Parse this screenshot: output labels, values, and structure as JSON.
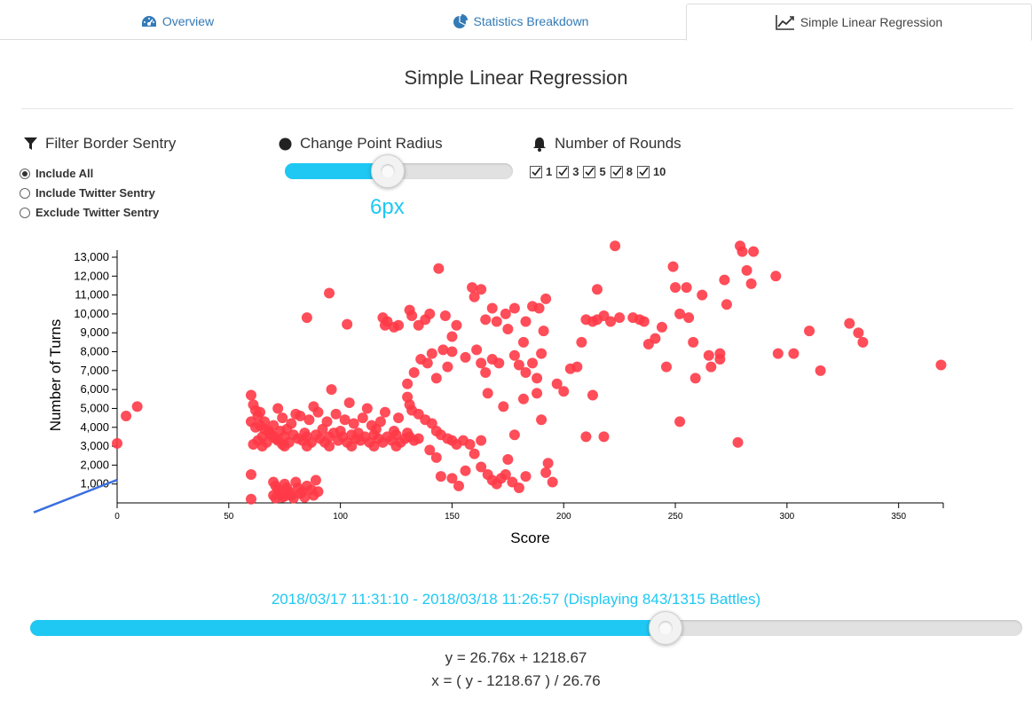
{
  "tabs": [
    {
      "label": "Overview",
      "icon": "dashboard-icon",
      "active": false
    },
    {
      "label": "Statistics Breakdown",
      "icon": "pie-chart-icon",
      "active": false
    },
    {
      "label": "Simple Linear Regression",
      "icon": "line-chart-icon",
      "active": true
    }
  ],
  "page_title": "Simple Linear Regression",
  "filter": {
    "heading": "Filter Border Sentry",
    "icon": "filter-icon",
    "options": [
      "Include All",
      "Include Twitter Sentry",
      "Exclude Twitter Sentry"
    ],
    "selected": 0
  },
  "point_radius": {
    "heading": "Change Point Radius",
    "icon": "circle-icon",
    "value_label": "6px",
    "value": 6,
    "fraction": 0.45
  },
  "rounds": {
    "heading": "Number of Rounds",
    "icon": "bell-icon",
    "options": [
      {
        "label": "1",
        "checked": true
      },
      {
        "label": "3",
        "checked": true
      },
      {
        "label": "5",
        "checked": true
      },
      {
        "label": "8",
        "checked": true
      },
      {
        "label": "10",
        "checked": true
      }
    ]
  },
  "chart_data": {
    "type": "scatter",
    "xlabel": "Score",
    "ylabel": "Number of Turns",
    "xlim": [
      0,
      370
    ],
    "ylim": [
      0,
      13000
    ],
    "x_ticks": [
      0,
      50,
      100,
      150,
      200,
      250,
      300,
      350
    ],
    "y_ticks": [
      1000,
      2000,
      3000,
      4000,
      5000,
      6000,
      7000,
      8000,
      9000,
      10000,
      11000,
      12000,
      13000
    ],
    "y_tick_labels": [
      "1,000",
      "2,000",
      "3,000",
      "4,000",
      "5,000",
      "6,000",
      "7,000",
      "8,000",
      "9,000",
      "10,000",
      "11,000",
      "12,000",
      "13,000"
    ],
    "point_color": "#ff3a47",
    "line_color": "#3a6fe0",
    "regression": {
      "slope": 26.76,
      "intercept": 1218.67
    },
    "points": [
      [
        0,
        3150
      ],
      [
        4,
        4600
      ],
      [
        9,
        5100
      ],
      [
        85,
        9800
      ],
      [
        95,
        11100
      ],
      [
        103,
        9450
      ],
      [
        60,
        5700
      ],
      [
        61,
        5200
      ],
      [
        62,
        4900
      ],
      [
        63,
        4600
      ],
      [
        60,
        4300
      ],
      [
        64,
        4100
      ],
      [
        66,
        3900
      ],
      [
        68,
        3700
      ],
      [
        70,
        3500
      ],
      [
        72,
        3300
      ],
      [
        74,
        3100
      ],
      [
        61,
        3100
      ],
      [
        63,
        3300
      ],
      [
        65,
        3500
      ],
      [
        67,
        3200
      ],
      [
        69,
        3600
      ],
      [
        71,
        3400
      ],
      [
        73,
        3800
      ],
      [
        75,
        3500
      ],
      [
        77,
        3200
      ],
      [
        79,
        3600
      ],
      [
        81,
        3400
      ],
      [
        83,
        3300
      ],
      [
        85,
        3500
      ],
      [
        87,
        3200
      ],
      [
        89,
        3600
      ],
      [
        91,
        3400
      ],
      [
        93,
        3200
      ],
      [
        95,
        3500
      ],
      [
        97,
        3700
      ],
      [
        99,
        3300
      ],
      [
        101,
        3500
      ],
      [
        103,
        3200
      ],
      [
        105,
        3600
      ],
      [
        107,
        3400
      ],
      [
        109,
        3300
      ],
      [
        111,
        3500
      ],
      [
        113,
        3200
      ],
      [
        115,
        3600
      ],
      [
        117,
        3400
      ],
      [
        119,
        3200
      ],
      [
        121,
        3500
      ],
      [
        123,
        3300
      ],
      [
        125,
        3600
      ],
      [
        127,
        3200
      ],
      [
        129,
        3400
      ],
      [
        131,
        3500
      ],
      [
        133,
        3300
      ],
      [
        135,
        3400
      ],
      [
        62,
        4000
      ],
      [
        66,
        4300
      ],
      [
        70,
        4100
      ],
      [
        74,
        4500
      ],
      [
        78,
        4200
      ],
      [
        82,
        4600
      ],
      [
        86,
        4400
      ],
      [
        90,
        4800
      ],
      [
        94,
        4300
      ],
      [
        98,
        4700
      ],
      [
        102,
        4400
      ],
      [
        106,
        4200
      ],
      [
        110,
        4500
      ],
      [
        114,
        4100
      ],
      [
        118,
        4300
      ],
      [
        64,
        4800
      ],
      [
        72,
        5000
      ],
      [
        80,
        4700
      ],
      [
        88,
        5100
      ],
      [
        96,
        6000
      ],
      [
        104,
        5300
      ],
      [
        112,
        5000
      ],
      [
        120,
        4800
      ],
      [
        126,
        4500
      ],
      [
        65,
        3000
      ],
      [
        75,
        3000
      ],
      [
        85,
        3000
      ],
      [
        95,
        3000
      ],
      [
        105,
        3000
      ],
      [
        115,
        3000
      ],
      [
        125,
        3000
      ],
      [
        68,
        3800
      ],
      [
        76,
        3900
      ],
      [
        84,
        3700
      ],
      [
        92,
        3900
      ],
      [
        100,
        3800
      ],
      [
        108,
        3700
      ],
      [
        116,
        3900
      ],
      [
        124,
        3800
      ],
      [
        130,
        3700
      ],
      [
        60,
        1500
      ],
      [
        60,
        200
      ],
      [
        70,
        1100
      ],
      [
        71,
        900
      ],
      [
        72,
        700
      ],
      [
        73,
        500
      ],
      [
        74,
        300
      ],
      [
        75,
        1000
      ],
      [
        76,
        800
      ],
      [
        77,
        600
      ],
      [
        78,
        400
      ],
      [
        80,
        1100
      ],
      [
        81,
        800
      ],
      [
        82,
        500
      ],
      [
        84,
        300
      ],
      [
        85,
        900
      ],
      [
        87,
        700
      ],
      [
        88,
        400
      ],
      [
        89,
        1200
      ],
      [
        90,
        600
      ],
      [
        70,
        400
      ],
      [
        71,
        250
      ],
      [
        75,
        350
      ],
      [
        79,
        250
      ],
      [
        83,
        600
      ],
      [
        131,
        10200
      ],
      [
        132,
        9900
      ],
      [
        135,
        9400
      ],
      [
        138,
        9700
      ],
      [
        140,
        10000
      ],
      [
        144,
        12400
      ],
      [
        147,
        9900
      ],
      [
        150,
        8800
      ],
      [
        152,
        9400
      ],
      [
        130,
        6300
      ],
      [
        133,
        6900
      ],
      [
        136,
        7600
      ],
      [
        139,
        7400
      ],
      [
        141,
        7900
      ],
      [
        143,
        6600
      ],
      [
        146,
        8100
      ],
      [
        148,
        7200
      ],
      [
        150,
        8000
      ],
      [
        119,
        9800
      ],
      [
        120,
        9400
      ],
      [
        121,
        9600
      ],
      [
        124,
        9300
      ],
      [
        126,
        9400
      ],
      [
        130,
        5600
      ],
      [
        131,
        5200
      ],
      [
        132,
        4900
      ],
      [
        135,
        4700
      ],
      [
        138,
        4400
      ],
      [
        141,
        4200
      ],
      [
        143,
        3800
      ],
      [
        145,
        3600
      ],
      [
        148,
        3400
      ],
      [
        150,
        3300
      ],
      [
        152,
        3100
      ],
      [
        155,
        3300
      ],
      [
        158,
        3100
      ],
      [
        163,
        3300
      ],
      [
        140,
        2800
      ],
      [
        143,
        2400
      ],
      [
        145,
        1400
      ],
      [
        150,
        1300
      ],
      [
        153,
        900
      ],
      [
        156,
        1700
      ],
      [
        160,
        2600
      ],
      [
        163,
        1900
      ],
      [
        166,
        1500
      ],
      [
        168,
        1200
      ],
      [
        170,
        1000
      ],
      [
        172,
        1300
      ],
      [
        174,
        1500
      ],
      [
        175,
        2300
      ],
      [
        177,
        1100
      ],
      [
        180,
        800
      ],
      [
        183,
        1400
      ],
      [
        159,
        11400
      ],
      [
        160,
        10900
      ],
      [
        163,
        11300
      ],
      [
        165,
        9700
      ],
      [
        168,
        10300
      ],
      [
        170,
        9600
      ],
      [
        174,
        10000
      ],
      [
        178,
        10300
      ],
      [
        183,
        9600
      ],
      [
        186,
        10400
      ],
      [
        189,
        10300
      ],
      [
        192,
        10800
      ],
      [
        191,
        9100
      ],
      [
        156,
        7700
      ],
      [
        161,
        8100
      ],
      [
        163,
        7400
      ],
      [
        165,
        6900
      ],
      [
        168,
        7600
      ],
      [
        171,
        7400
      ],
      [
        175,
        9200
      ],
      [
        178,
        7800
      ],
      [
        180,
        7300
      ],
      [
        182,
        8500
      ],
      [
        183,
        6900
      ],
      [
        186,
        7400
      ],
      [
        188,
        6600
      ],
      [
        190,
        7900
      ],
      [
        166,
        5800
      ],
      [
        173,
        5100
      ],
      [
        178,
        3600
      ],
      [
        182,
        5500
      ],
      [
        188,
        5800
      ],
      [
        190,
        4400
      ],
      [
        193,
        2100
      ],
      [
        195,
        1100
      ],
      [
        192,
        1600
      ],
      [
        197,
        6300
      ],
      [
        200,
        5900
      ],
      [
        203,
        7100
      ],
      [
        206,
        7200
      ],
      [
        208,
        8500
      ],
      [
        210,
        9700
      ],
      [
        213,
        9600
      ],
      [
        215,
        9700
      ],
      [
        218,
        9900
      ],
      [
        221,
        9600
      ],
      [
        223,
        13600
      ],
      [
        210,
        3500
      ],
      [
        213,
        5700
      ],
      [
        218,
        3500
      ],
      [
        215,
        11300
      ],
      [
        225,
        9800
      ],
      [
        231,
        9800
      ],
      [
        234,
        9700
      ],
      [
        236,
        9600
      ],
      [
        238,
        8400
      ],
      [
        241,
        8700
      ],
      [
        244,
        9300
      ],
      [
        246,
        7200
      ],
      [
        249,
        12500
      ],
      [
        250,
        11400
      ],
      [
        252,
        10000
      ],
      [
        255,
        11400
      ],
      [
        256,
        9800
      ],
      [
        258,
        8500
      ],
      [
        259,
        6600
      ],
      [
        262,
        11000
      ],
      [
        265,
        7800
      ],
      [
        266,
        7200
      ],
      [
        270,
        7900
      ],
      [
        252,
        4300
      ],
      [
        270,
        7600
      ],
      [
        272,
        11800
      ],
      [
        273,
        10500
      ],
      [
        278,
        3200
      ],
      [
        279,
        13600
      ],
      [
        280,
        13300
      ],
      [
        282,
        12300
      ],
      [
        284,
        11600
      ],
      [
        285,
        13300
      ],
      [
        295,
        12000
      ],
      [
        296,
        7900
      ],
      [
        303,
        7900
      ],
      [
        310,
        9100
      ],
      [
        315,
        7000
      ],
      [
        328,
        9500
      ],
      [
        332,
        9000
      ],
      [
        334,
        8500
      ],
      [
        369,
        7300
      ]
    ]
  },
  "date_range": {
    "label": "2018/03/17 11:31:10 - 2018/03/18 11:26:57 (Displaying 843/1315 Battles)",
    "fraction": 0.64
  },
  "equations": {
    "y_eq": "y = 26.76x + 1218.67",
    "x_eq": "x = ( y - 1218.67 ) / 26.76"
  }
}
